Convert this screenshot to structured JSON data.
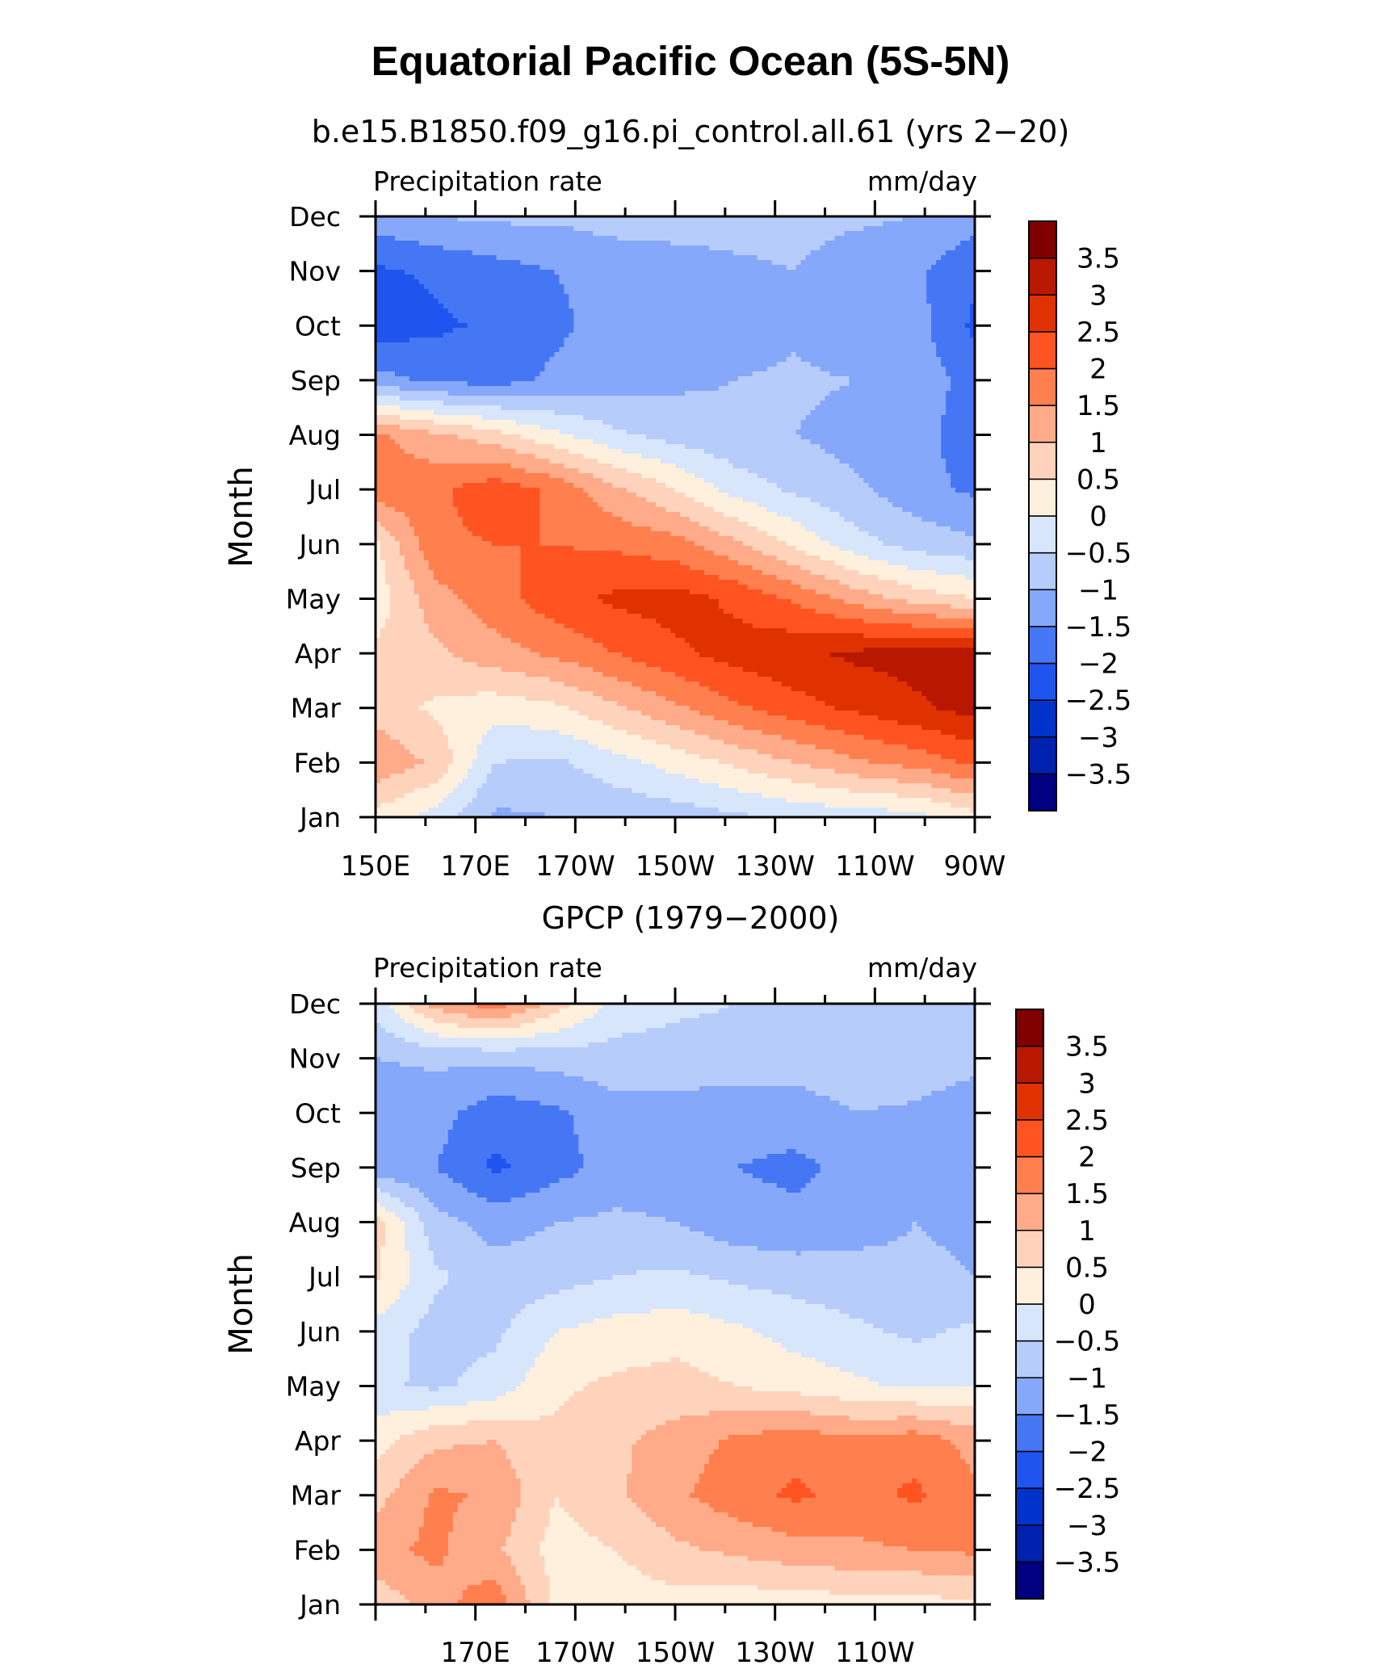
{
  "title": "Equatorial Pacific Ocean (5S-5N)",
  "chart_data": [
    {
      "type": "heatmap",
      "title": "b.e15.B1850.f09_g16.pi_control.all.61 (yrs 2−20)",
      "left_label": "Precipitation rate",
      "right_label": "mm/day",
      "ylabel": "Month",
      "x_tick_labels": [
        "150E",
        "170E",
        "170W",
        "150W",
        "130W",
        "110W",
        "90W"
      ],
      "y_tick_labels": [
        "Jan",
        "Feb",
        "Mar",
        "Apr",
        "May",
        "Jun",
        "Jul",
        "Aug",
        "Sep",
        "Oct",
        "Nov",
        "Dec"
      ],
      "xlim": [
        150,
        270
      ],
      "colorbar_labels": [
        "3.5",
        "3",
        "2.5",
        "2",
        "1.5",
        "1",
        "0.5",
        "0",
        "−0.5",
        "−1",
        "−1.5",
        "−2",
        "−2.5",
        "−3",
        "−3.5"
      ],
      "x": [
        150,
        162,
        174,
        186,
        198,
        210,
        222,
        234,
        246,
        258,
        270
      ],
      "y": [
        1,
        2,
        3,
        4,
        5,
        6,
        7,
        8,
        9,
        10,
        11,
        12
      ],
      "z": [
        [
          0.3,
          -0.2,
          -1.1,
          -1.0,
          -0.9,
          -0.8,
          -0.6,
          -0.4,
          -0.3,
          -0.2,
          0.3
        ],
        [
          1.4,
          0.9,
          -0.5,
          -0.6,
          -0.2,
          0.2,
          0.6,
          1.0,
          1.4,
          1.7,
          2.1
        ],
        [
          0.8,
          0.4,
          0.2,
          0.4,
          0.9,
          1.4,
          1.9,
          2.3,
          2.6,
          2.9,
          3.2
        ],
        [
          0.6,
          0.9,
          1.3,
          1.6,
          2.0,
          2.4,
          2.7,
          2.9,
          3.1,
          3.2,
          3.3
        ],
        [
          0.2,
          1.3,
          1.8,
          2.3,
          2.6,
          2.7,
          2.4,
          1.9,
          1.3,
          0.8,
          0.5
        ],
        [
          0.4,
          1.9,
          2.0,
          2.0,
          1.9,
          1.7,
          1.1,
          0.4,
          -0.3,
          -0.7,
          -0.9
        ],
        [
          1.8,
          1.9,
          2.3,
          1.9,
          1.1,
          0.5,
          -0.2,
          -0.6,
          -0.9,
          -1.3,
          -1.6
        ],
        [
          1.6,
          1.1,
          0.7,
          0.1,
          -0.4,
          -0.7,
          -0.9,
          -1.0,
          -1.2,
          -1.3,
          -1.8
        ],
        [
          -1.3,
          -1.6,
          -1.7,
          -1.4,
          -1.2,
          -1.1,
          -1.0,
          -0.9,
          -1.0,
          -1.2,
          -1.7
        ],
        [
          -2.3,
          -2.1,
          -1.9,
          -1.6,
          -1.3,
          -1.2,
          -1.3,
          -1.1,
          -1.4,
          -1.3,
          -2.1
        ],
        [
          -2.1,
          -1.9,
          -1.7,
          -1.5,
          -1.3,
          -1.2,
          -1.1,
          -1.0,
          -1.3,
          -1.4,
          -1.9
        ],
        [
          -1.2,
          -1.0,
          -0.9,
          -0.9,
          -0.8,
          -0.8,
          -0.8,
          -0.8,
          -0.9,
          -1.0,
          -1.3
        ]
      ]
    },
    {
      "type": "heatmap",
      "title": "GPCP (1979−2000)",
      "left_label": "Precipitation rate",
      "right_label": "mm/day",
      "ylabel": "Month",
      "x_tick_labels": [
        "170E",
        "170W",
        "150W",
        "130W",
        "110W"
      ],
      "y_tick_labels": [
        "Jan",
        "Feb",
        "Mar",
        "Apr",
        "May",
        "Jun",
        "Jul",
        "Aug",
        "Sep",
        "Oct",
        "Nov",
        "Dec"
      ],
      "xlim": [
        150,
        270
      ],
      "colorbar_labels": [
        "3.5",
        "3",
        "2.5",
        "2",
        "1.5",
        "1",
        "0.5",
        "0",
        "−0.5",
        "−1",
        "−1.5",
        "−2",
        "−2.5",
        "−3",
        "−3.5"
      ],
      "x": [
        150,
        162,
        174,
        186,
        198,
        210,
        222,
        234,
        246,
        258,
        270
      ],
      "y": [
        1,
        2,
        3,
        4,
        5,
        6,
        7,
        8,
        9,
        10,
        11,
        12
      ],
      "z": [
        [
          0.6,
          1.3,
          1.8,
          0.4,
          0.2,
          0.3,
          0.2,
          0.2,
          0.3,
          0.3,
          0.4
        ],
        [
          1.4,
          1.6,
          1.1,
          0.3,
          0.5,
          0.9,
          1.1,
          1.3,
          1.4,
          1.5,
          1.6
        ],
        [
          0.8,
          1.6,
          1.4,
          0.5,
          0.9,
          1.4,
          1.8,
          2.1,
          1.8,
          2.1,
          1.6
        ],
        [
          0.3,
          0.9,
          1.0,
          0.6,
          0.9,
          1.2,
          1.6,
          1.8,
          1.6,
          1.8,
          1.3
        ],
        [
          -0.4,
          -0.6,
          -0.3,
          0.4,
          0.6,
          0.7,
          0.5,
          0.3,
          0.1,
          -0.1,
          0.0
        ],
        [
          -0.2,
          -0.7,
          -0.6,
          0.0,
          0.2,
          0.3,
          0.1,
          -0.2,
          -0.4,
          -0.6,
          -0.4
        ],
        [
          0.6,
          -0.4,
          -0.8,
          -0.7,
          -0.5,
          -0.4,
          -0.6,
          -0.7,
          -0.8,
          -0.9,
          -1.0
        ],
        [
          0.7,
          -0.8,
          -1.2,
          -1.0,
          -0.9,
          -1.0,
          -1.3,
          -1.4,
          -1.2,
          -1.0,
          -1.1
        ],
        [
          -1.3,
          -1.5,
          -2.1,
          -1.7,
          -1.3,
          -1.3,
          -1.5,
          -1.6,
          -1.4,
          -1.2,
          -1.3
        ],
        [
          -1.4,
          -1.3,
          -1.8,
          -1.6,
          -1.2,
          -1.2,
          -1.3,
          -1.3,
          -1.0,
          -1.1,
          -1.4
        ],
        [
          -1.0,
          -0.9,
          -0.9,
          -0.8,
          -0.7,
          -0.7,
          -0.7,
          -0.7,
          -0.6,
          -0.6,
          -0.8
        ],
        [
          -0.3,
          1.2,
          1.8,
          0.8,
          -0.2,
          -0.4,
          -0.5,
          -0.6,
          -0.6,
          -0.6,
          -0.6
        ]
      ]
    }
  ],
  "colormap": [
    "#000080",
    "#0020b0",
    "#0033cc",
    "#1f55ee",
    "#4577f5",
    "#86a8fa",
    "#b6ccfb",
    "#d8e6fc",
    "#fff0de",
    "#ffd2bb",
    "#ffaa88",
    "#ff7f4e",
    "#ff5422",
    "#e03200",
    "#b81800",
    "#800000"
  ]
}
